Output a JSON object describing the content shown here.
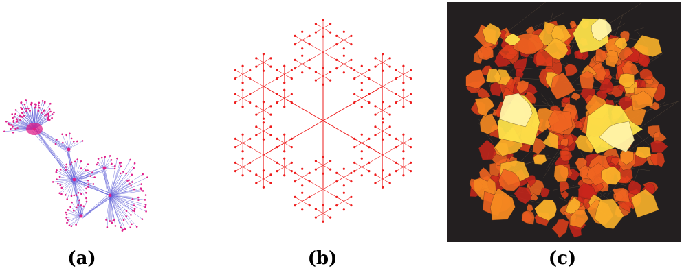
{
  "captions": {
    "a": "(a)",
    "b": "(b)",
    "c": "(c)"
  },
  "colors": {
    "graph_edge": "#5a5ad6",
    "graph_node": "#e0208a",
    "fractal": "#ee1c1c",
    "canvas_bg": "#231f20",
    "blob_palette": [
      "#c9261b",
      "#e2401b",
      "#f06420",
      "#f68a21",
      "#fbb22a",
      "#fde24a",
      "#fff3a8"
    ]
  }
}
